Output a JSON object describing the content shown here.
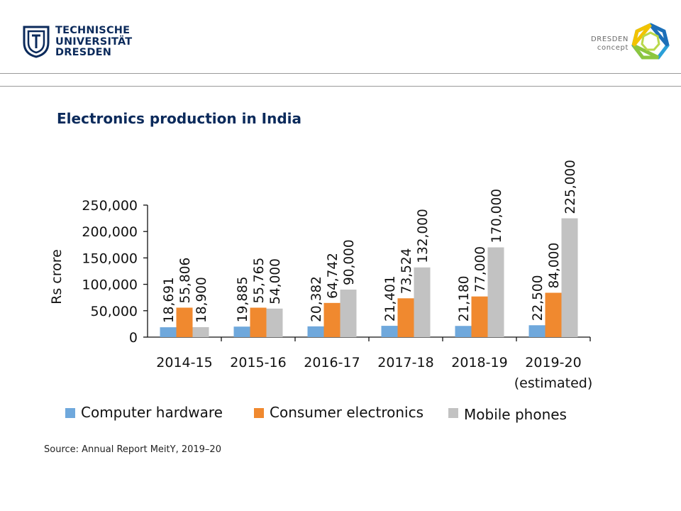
{
  "header": {
    "tu_logo_lines": [
      "TECHNISCHE",
      "UNIVERSITÄT",
      "DRESDEN"
    ],
    "dresden_concept_lines": [
      "DRESDEN",
      "concept"
    ]
  },
  "slide": {
    "title": "Electronics production in India",
    "source": "Source: Annual Report MeitY, 2019–20"
  },
  "colors": {
    "computer_hardware": "#6fa8dc",
    "consumer_electronics": "#f0892f",
    "mobile_phones": "#c2c2c2",
    "title": "#0b2a5b"
  },
  "chart_data": {
    "type": "bar",
    "ylabel": "Rs crore",
    "ylim": [
      0,
      250000
    ],
    "yticks": [
      "0",
      "50,000",
      "100,000",
      "150,000",
      "200,000",
      "250,000"
    ],
    "grid": false,
    "legend_position": "bottom",
    "categories": [
      "2014-15",
      "2015-16",
      "2016-17",
      "2017-18",
      "2018-19",
      "2019-20\n(estimated)"
    ],
    "series": [
      {
        "name": "Computer hardware",
        "values": [
          18691,
          19885,
          20382,
          21401,
          21180,
          22500
        ],
        "labels": [
          "18,691",
          "19,885",
          "20,382",
          "21,401",
          "21,180",
          "22,500"
        ]
      },
      {
        "name": "Consumer electronics",
        "values": [
          55806,
          55765,
          64742,
          73524,
          77000,
          84000
        ],
        "labels": [
          "55,806",
          "55,765",
          "64,742",
          "73,524",
          "77,000",
          "84,000"
        ]
      },
      {
        "name": "Mobile phones",
        "values": [
          18900,
          54000,
          90000,
          132000,
          170000,
          225000
        ],
        "labels": [
          "18,900",
          "54,000",
          "90,000",
          "132,000",
          "170,000",
          "225,000"
        ]
      }
    ]
  }
}
